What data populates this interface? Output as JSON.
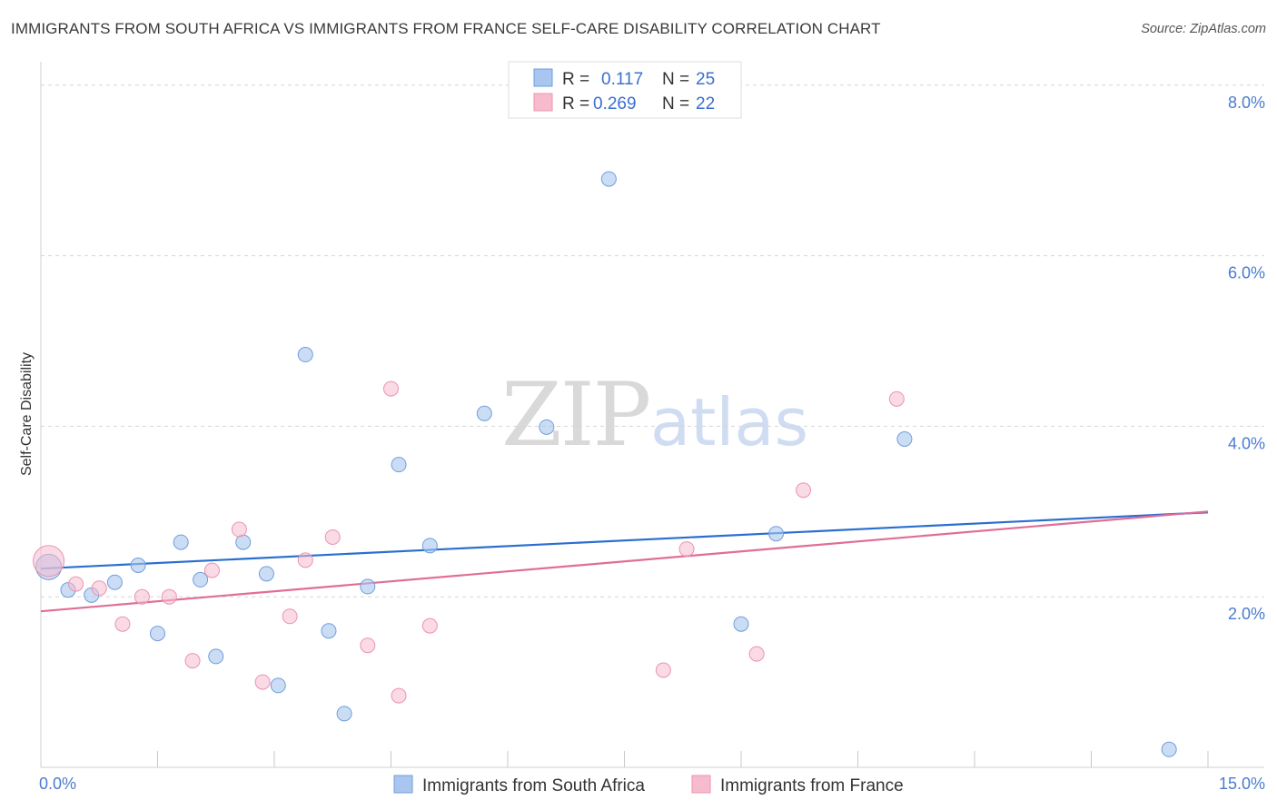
{
  "title": "IMMIGRANTS FROM SOUTH AFRICA VS IMMIGRANTS FROM FRANCE SELF-CARE DISABILITY CORRELATION CHART",
  "source": "Source: ZipAtlas.com",
  "watermark": {
    "zip": "ZIP",
    "atlas": "atlas"
  },
  "chart_data": {
    "type": "scatter",
    "title": "IMMIGRANTS FROM SOUTH AFRICA VS IMMIGRANTS FROM FRANCE SELF-CARE DISABILITY CORRELATION CHART",
    "xlabel": "",
    "ylabel": "Self-Care Disability",
    "xlim": [
      0,
      15
    ],
    "ylim": [
      0,
      8.2
    ],
    "x_tick_labels": [
      "0.0%",
      "15.0%"
    ],
    "y_ticks": [
      2,
      4,
      6,
      8
    ],
    "y_tick_labels": [
      "2.0%",
      "4.0%",
      "6.0%",
      "8.0%"
    ],
    "grid": true,
    "legend_placement": "top-center",
    "series": [
      {
        "name": "Immigrants from South Africa",
        "color": "#a8c6ef",
        "stroke": "#6f9edc",
        "line_color": "#2a6fcf",
        "R": "0.117",
        "N": "25",
        "trend": {
          "x": [
            0,
            15
          ],
          "y": [
            2.33,
            2.99
          ]
        },
        "points": [
          [
            0.1,
            2.35
          ],
          [
            0.35,
            2.08
          ],
          [
            0.65,
            2.02
          ],
          [
            0.95,
            2.17
          ],
          [
            1.25,
            2.37
          ],
          [
            1.5,
            1.57
          ],
          [
            1.8,
            2.64
          ],
          [
            2.05,
            2.2
          ],
          [
            2.25,
            1.3
          ],
          [
            2.6,
            2.64
          ],
          [
            2.9,
            2.27
          ],
          [
            3.05,
            0.96
          ],
          [
            3.4,
            4.84
          ],
          [
            3.7,
            1.6
          ],
          [
            3.9,
            0.63
          ],
          [
            4.2,
            2.12
          ],
          [
            4.6,
            3.55
          ],
          [
            5.0,
            2.6
          ],
          [
            5.7,
            4.15
          ],
          [
            6.5,
            3.99
          ],
          [
            7.3,
            6.9
          ],
          [
            9.0,
            1.68
          ],
          [
            9.45,
            2.74
          ],
          [
            11.1,
            3.85
          ],
          [
            14.5,
            0.21
          ]
        ]
      },
      {
        "name": "Immigrants from France",
        "color": "#f6bccd",
        "stroke": "#ec93b0",
        "line_color": "#e06e96",
        "R": "0.269",
        "N": "22",
        "trend": {
          "x": [
            0,
            15
          ],
          "y": [
            1.83,
            3.0
          ]
        },
        "points": [
          [
            0.1,
            2.42
          ],
          [
            0.45,
            2.15
          ],
          [
            0.75,
            2.1
          ],
          [
            1.05,
            1.68
          ],
          [
            1.3,
            2.0
          ],
          [
            1.65,
            2.0
          ],
          [
            1.95,
            1.25
          ],
          [
            2.2,
            2.31
          ],
          [
            2.55,
            2.79
          ],
          [
            2.85,
            1.0
          ],
          [
            3.2,
            1.77
          ],
          [
            3.4,
            2.43
          ],
          [
            3.75,
            2.7
          ],
          [
            4.2,
            1.43
          ],
          [
            4.5,
            4.44
          ],
          [
            4.6,
            0.84
          ],
          [
            5.0,
            1.66
          ],
          [
            8.0,
            1.14
          ],
          [
            8.3,
            2.56
          ],
          [
            9.2,
            1.33
          ],
          [
            9.8,
            3.25
          ],
          [
            11.0,
            4.32
          ]
        ]
      }
    ]
  }
}
